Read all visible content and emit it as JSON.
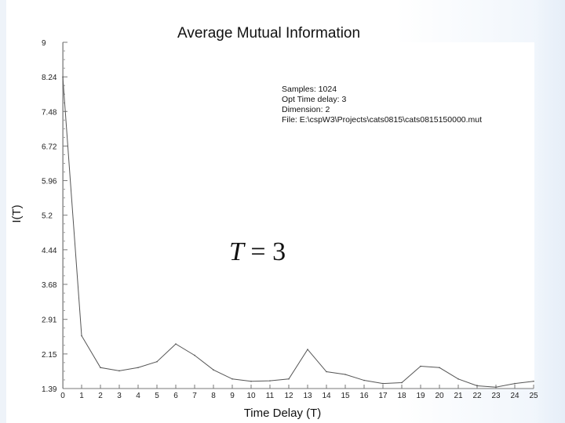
{
  "chart_data": {
    "type": "line",
    "title": "Average Mutual Information",
    "xlabel": "Time Delay (T)",
    "ylabel": "I(T)",
    "x": [
      0,
      1,
      2,
      3,
      4,
      5,
      6,
      7,
      8,
      9,
      10,
      11,
      12,
      13,
      14,
      15,
      16,
      17,
      18,
      19,
      20,
      21,
      22,
      23,
      24,
      25
    ],
    "series": [
      {
        "values": [
          8.24,
          2.55,
          1.85,
          1.78,
          1.85,
          1.98,
          2.37,
          2.12,
          1.8,
          1.6,
          1.55,
          1.56,
          1.6,
          2.25,
          1.76,
          1.7,
          1.57,
          1.5,
          1.52,
          1.88,
          1.85,
          1.6,
          1.45,
          1.42,
          1.5,
          1.55
        ]
      }
    ],
    "xlim": [
      0,
      25
    ],
    "ylim": [
      1.39,
      9
    ],
    "x_ticks": [
      "0",
      "1",
      "2",
      "3",
      "4",
      "5",
      "6",
      "7",
      "8",
      "9",
      "10",
      "11",
      "12",
      "13",
      "14",
      "15",
      "16",
      "17",
      "18",
      "19",
      "20",
      "21",
      "22",
      "23",
      "24",
      "25"
    ],
    "y_ticks": [
      "9",
      "8.24",
      "7.48",
      "6.72",
      "5.96",
      "5.2",
      "4.44",
      "3.68",
      "2.91",
      "2.15",
      "1.39"
    ],
    "grid": false,
    "line_color": "#555555"
  },
  "info": {
    "samples": "Samples: 1024",
    "opt_delay": "Opt Time delay: 3",
    "dimension": "Dimension: 2",
    "file": "File: E:\\cspW3\\Projects\\cats0815\\cats0815150000.mut"
  },
  "annotation": {
    "lhs": "T",
    "eq": " = 3"
  }
}
